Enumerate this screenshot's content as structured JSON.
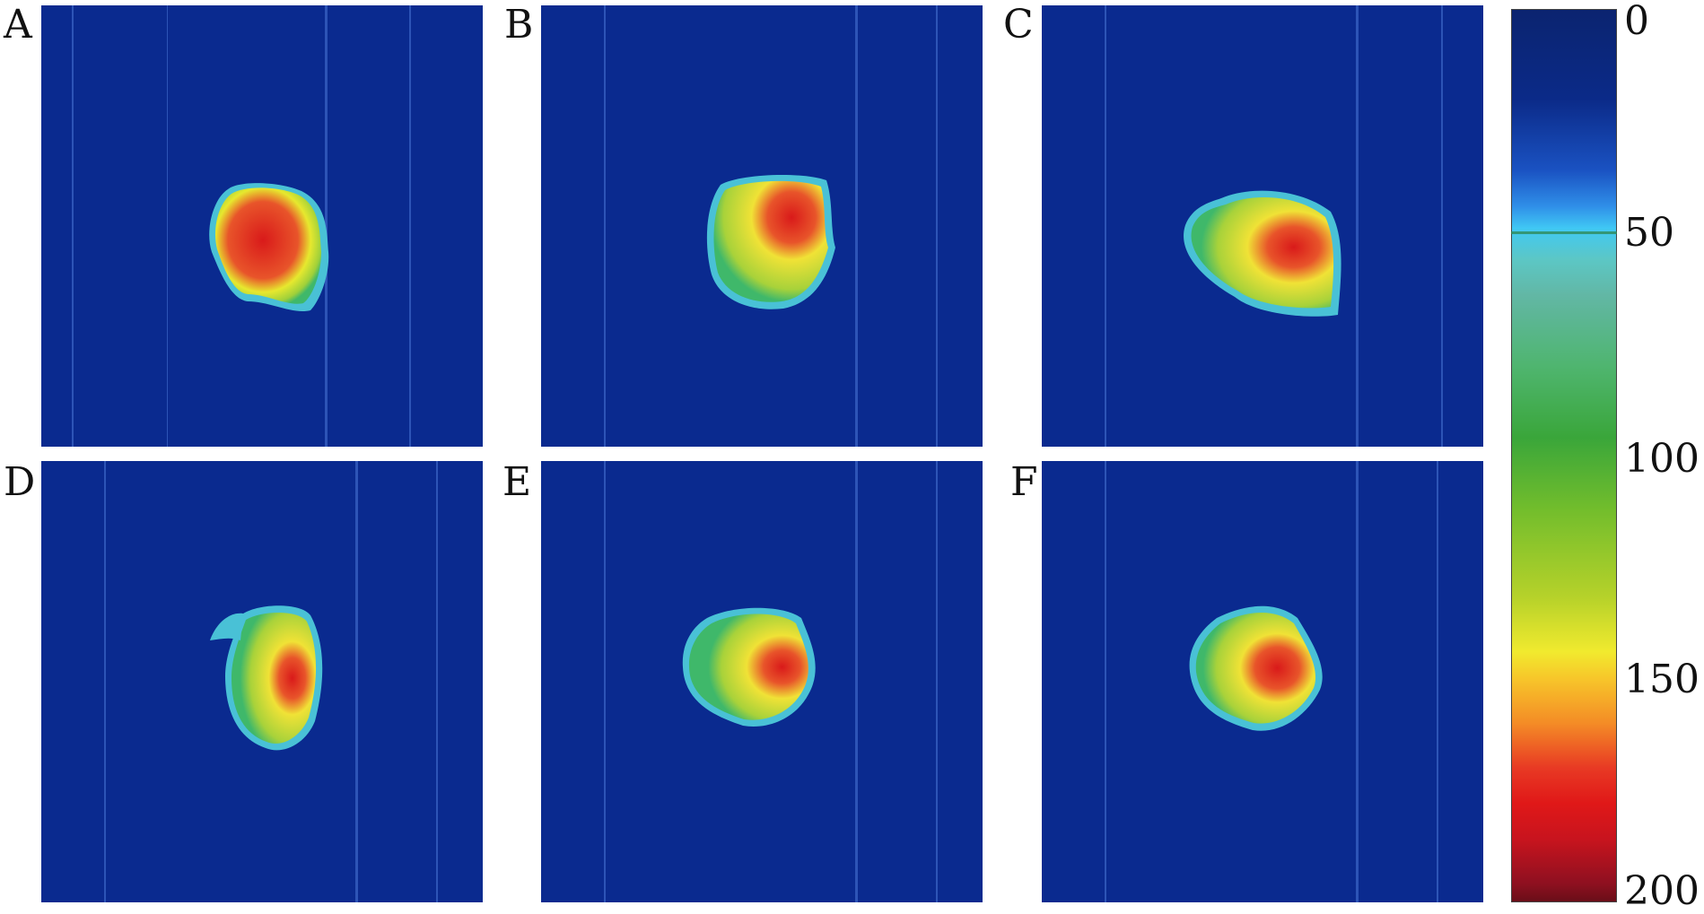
{
  "panels": [
    {
      "label": "A"
    },
    {
      "label": "B"
    },
    {
      "label": "C"
    },
    {
      "label": "D"
    },
    {
      "label": "E"
    },
    {
      "label": "F"
    }
  ],
  "colorbar": {
    "ticks": [
      "0",
      "50",
      "100",
      "150",
      "200"
    ],
    "min": 0,
    "max": 200
  },
  "colors": {
    "background": "#0a2a8f",
    "low": "#3aa63a",
    "mid": "#f1ea2e",
    "high": "#d91a1a"
  }
}
